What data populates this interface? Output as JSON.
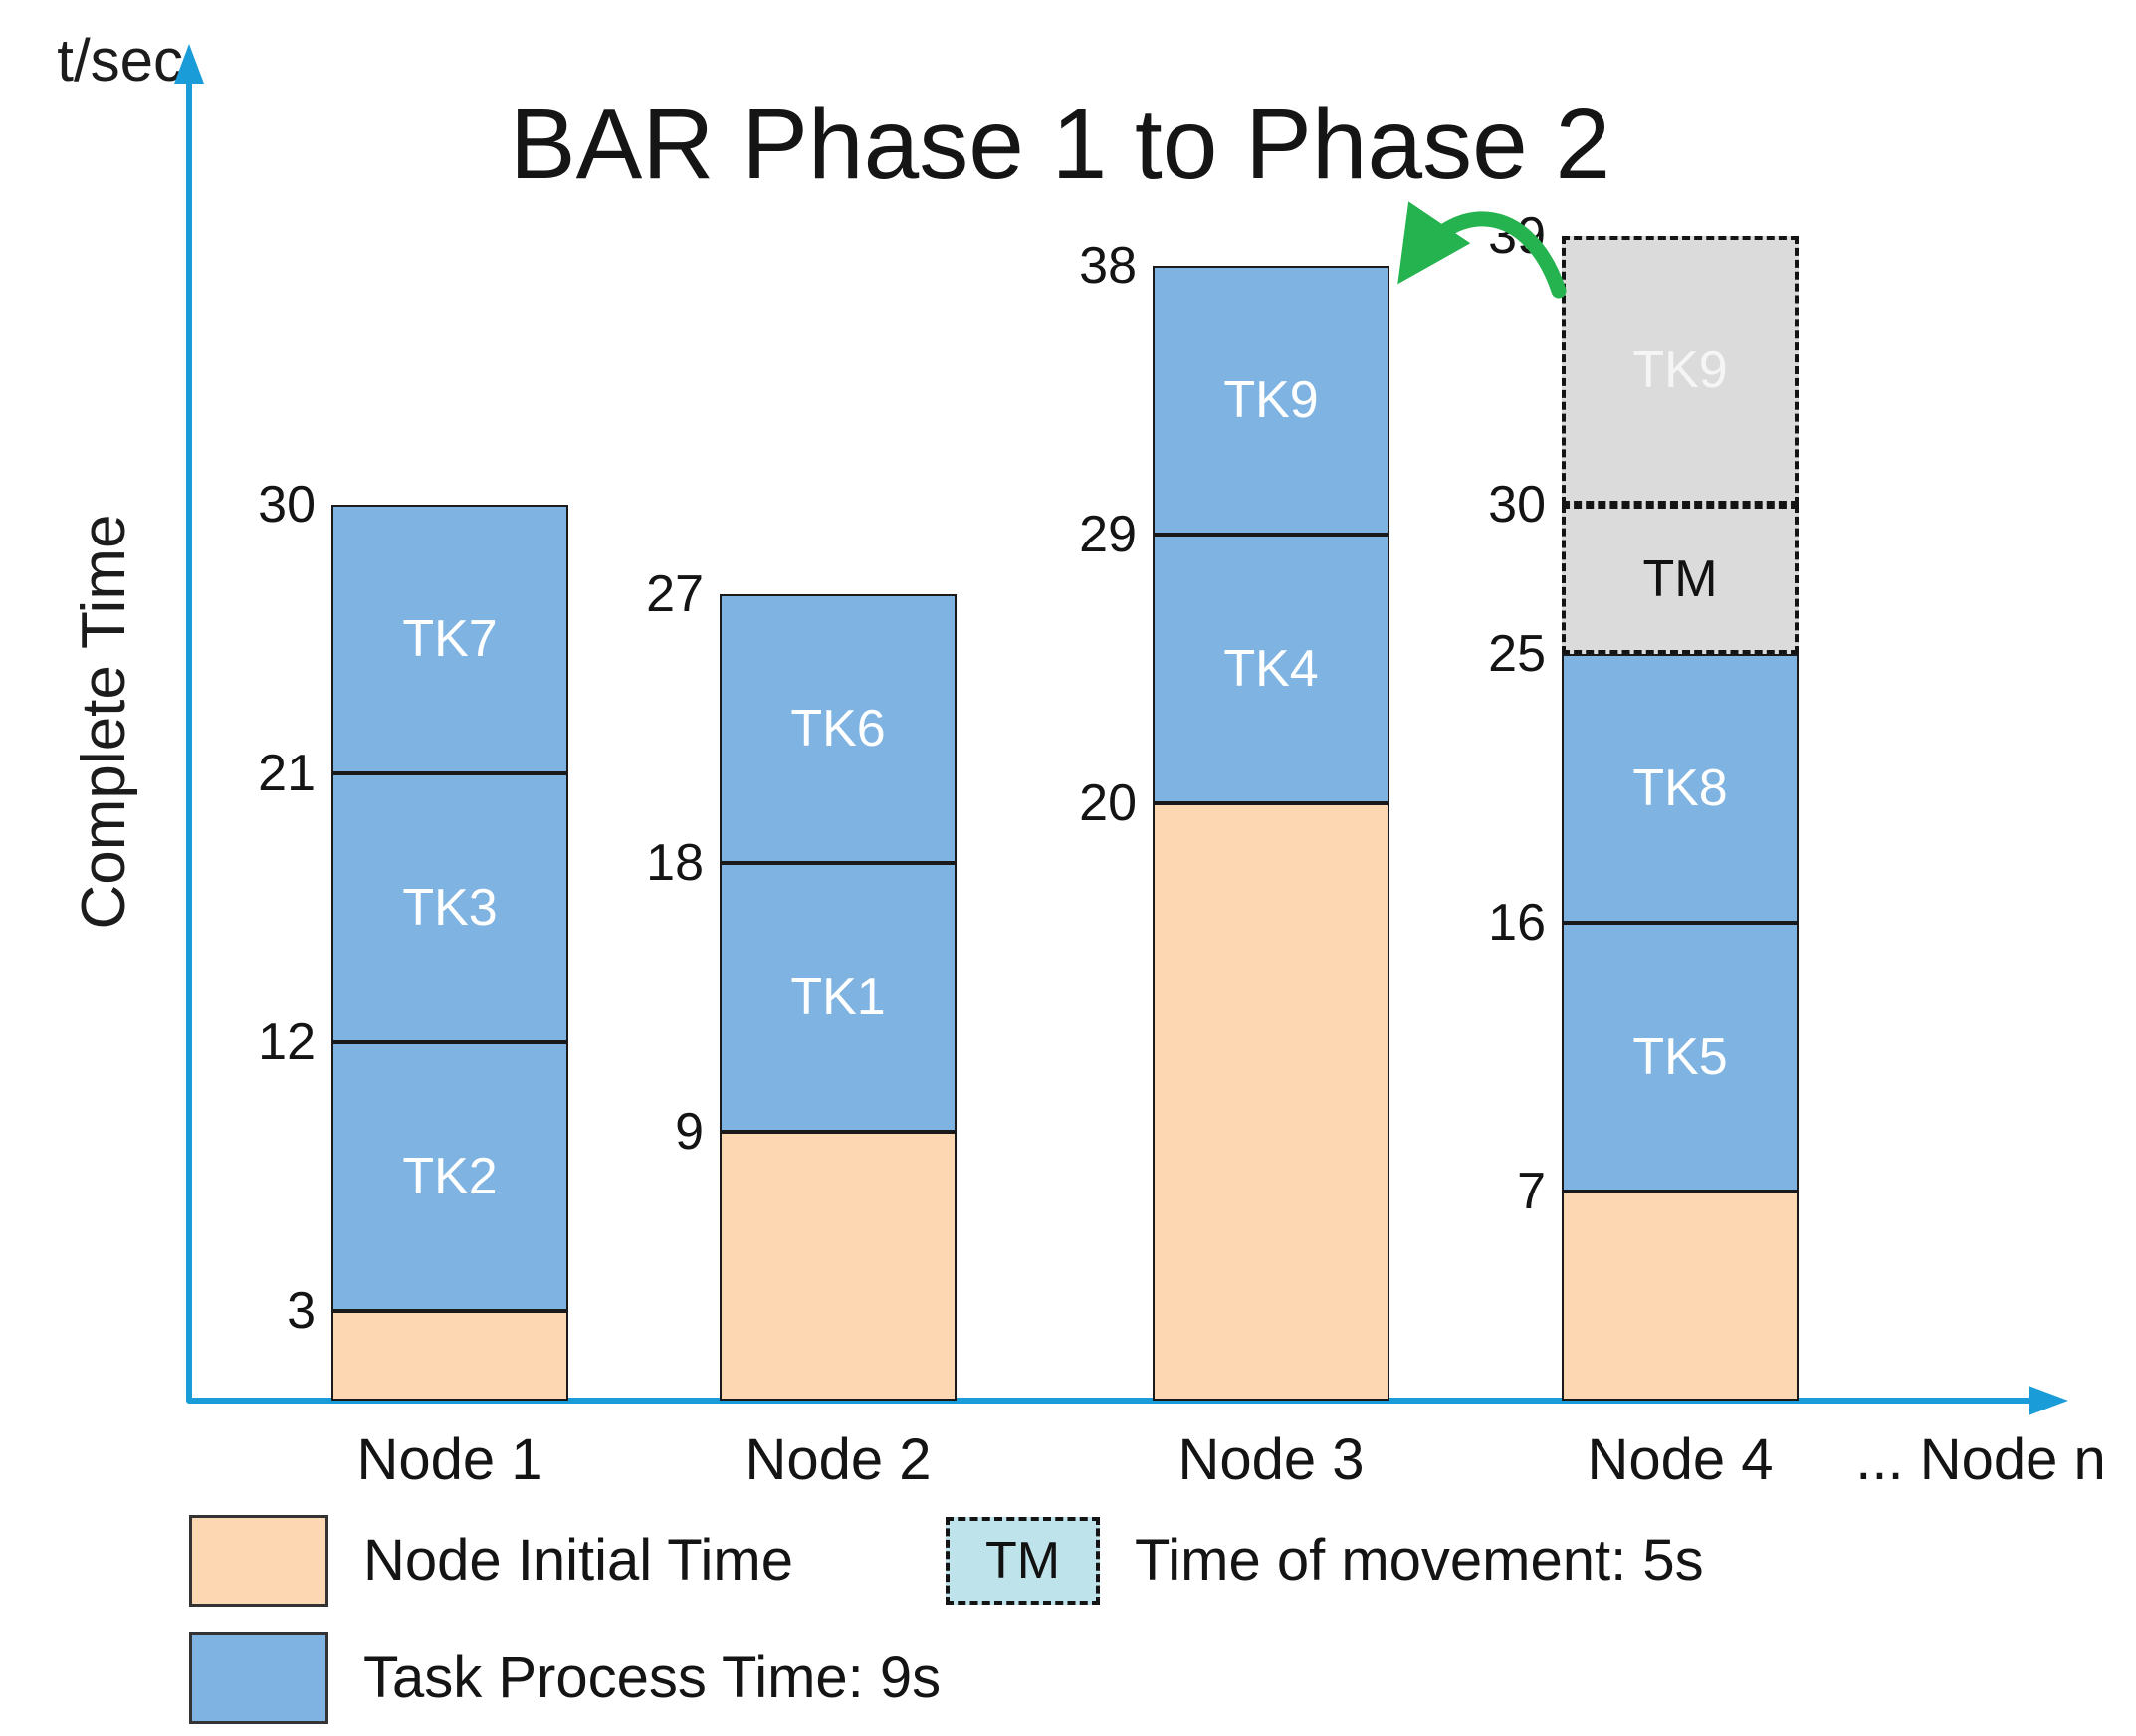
{
  "title": "BAR Phase 1 to Phase 2",
  "colors": {
    "axis": "#1a9cd8",
    "task_fill": "#7fb3e2",
    "initial_fill": "#fcd7b2",
    "moved_fill": "#dbdbdb",
    "legend_tm_fill": "#bfe3ea",
    "arrow_green": "#25b34f",
    "segment_border": "#1a1a1a",
    "task_text": "#ffffff",
    "moved_task_text": "#f5f5f5",
    "movement_text": "#111111"
  },
  "legend": {
    "initial": {
      "label": "Node Initial Time"
    },
    "task": {
      "label": "Task Process Time: 9s"
    },
    "movement": {
      "swatch_text": "TM",
      "label": "Time of movement: 5s"
    }
  },
  "chart_data": {
    "type": "bar",
    "stacked": true,
    "title": "BAR Phase 1 to Phase 2",
    "y_unit": "t/sec",
    "ylabel": "Complete Time",
    "xlabel": "",
    "ylim": [
      0,
      39
    ],
    "grid": false,
    "task_process_time_s": 9,
    "movement_time_s": 5,
    "categories": [
      "Node 1",
      "Node 2",
      "Node 3",
      "Node 4"
    ],
    "x_overflow_label": "... Node n",
    "bars": [
      {
        "category": "Node 1",
        "ticks": [
          3,
          12,
          21,
          30
        ],
        "segments": [
          {
            "name": "",
            "kind": "initial",
            "from": 0,
            "to": 3
          },
          {
            "name": "TK2",
            "kind": "task",
            "from": 3,
            "to": 12
          },
          {
            "name": "TK3",
            "kind": "task",
            "from": 12,
            "to": 21
          },
          {
            "name": "TK7",
            "kind": "task",
            "from": 21,
            "to": 30
          }
        ]
      },
      {
        "category": "Node 2",
        "ticks": [
          9,
          18,
          27
        ],
        "segments": [
          {
            "name": "",
            "kind": "initial",
            "from": 0,
            "to": 9
          },
          {
            "name": "TK1",
            "kind": "task",
            "from": 9,
            "to": 18
          },
          {
            "name": "TK6",
            "kind": "task",
            "from": 18,
            "to": 27
          }
        ]
      },
      {
        "category": "Node 3",
        "ticks": [
          20,
          29,
          38
        ],
        "segments": [
          {
            "name": "",
            "kind": "initial",
            "from": 0,
            "to": 20
          },
          {
            "name": "TK4",
            "kind": "task",
            "from": 20,
            "to": 29
          },
          {
            "name": "TK9",
            "kind": "task",
            "from": 29,
            "to": 38
          }
        ]
      },
      {
        "category": "Node 4",
        "ticks": [
          7,
          16,
          25,
          30,
          39
        ],
        "segments": [
          {
            "name": "",
            "kind": "initial",
            "from": 0,
            "to": 7
          },
          {
            "name": "TK5",
            "kind": "task",
            "from": 7,
            "to": 16
          },
          {
            "name": "TK8",
            "kind": "task",
            "from": 16,
            "to": 25
          },
          {
            "name": "TM",
            "kind": "movement",
            "from": 25,
            "to": 30
          },
          {
            "name": "TK9",
            "kind": "moved-task",
            "from": 30,
            "to": 39
          }
        ]
      }
    ],
    "annotation_arrow": {
      "from_category": "Node 4",
      "from_segment": "TK9",
      "to_category": "Node 3"
    }
  }
}
